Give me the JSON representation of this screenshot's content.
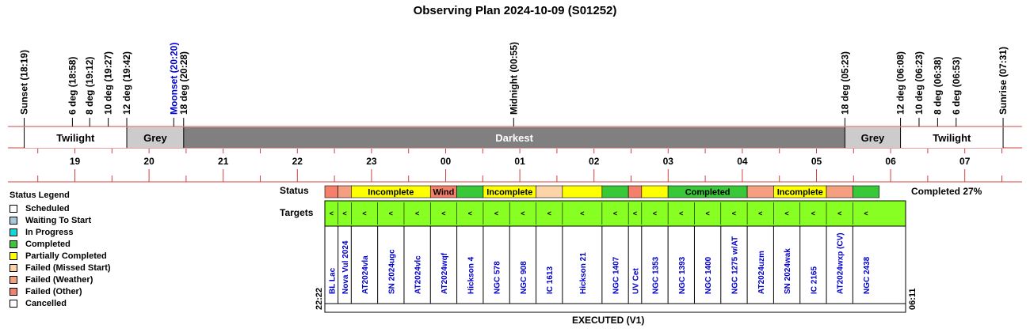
{
  "title": "Observing Plan 2024-10-09 (S01252)",
  "colors": {
    "scheduled": "#ffffff",
    "waiting": "#a6cadc",
    "in_progress": "#14d8d8",
    "completed": "#38c838",
    "partial": "#ffff00",
    "missed_start": "#fcd4a8",
    "weather": "#f4a080",
    "other": "#f4806c",
    "cancelled": "#ffffff",
    "twilight": "#ffffff",
    "grey": "#cccccc",
    "darkest": "#808080",
    "target_green": "#88ff22",
    "rule_red": "#d04040",
    "target_blue": "#0000cc"
  },
  "timeline": {
    "start_hour": 18.25,
    "end_hour": 31.6,
    "events": [
      {
        "label": "Sunset (18:19)",
        "hour": 18.3167,
        "color": "#000000"
      },
      {
        "label": "6 deg (18:58)",
        "hour": 18.9667,
        "color": "#000000"
      },
      {
        "label": "8 deg (19:12)",
        "hour": 19.2,
        "color": "#000000"
      },
      {
        "label": "10 deg (19:27)",
        "hour": 19.45,
        "color": "#000000"
      },
      {
        "label": "12 deg (19:42)",
        "hour": 19.7,
        "color": "#000000"
      },
      {
        "label": "Moonset (20:20)",
        "hour": 20.3333,
        "color": "#0000cc"
      },
      {
        "label": "18 deg (20:28)",
        "hour": 20.4667,
        "color": "#000000"
      },
      {
        "label": "Midnight (00:55)",
        "hour": 24.9167,
        "color": "#000000"
      },
      {
        "label": "18 deg (05:23)",
        "hour": 29.3833,
        "color": "#000000"
      },
      {
        "label": "12 deg (06:08)",
        "hour": 30.1333,
        "color": "#000000"
      },
      {
        "label": "10 deg (06:23)",
        "hour": 30.3833,
        "color": "#000000"
      },
      {
        "label": "8 deg (06:38)",
        "hour": 30.6333,
        "color": "#000000"
      },
      {
        "label": "6 deg (06:53)",
        "hour": 30.8833,
        "color": "#000000"
      },
      {
        "label": "Sunrise (07:31)",
        "hour": 31.5167,
        "color": "#000000"
      }
    ],
    "bands": [
      {
        "label": "Twilight",
        "from": 18.3167,
        "to": 19.7,
        "kind": "twilight"
      },
      {
        "label": "Grey",
        "from": 19.7,
        "to": 20.4667,
        "kind": "grey"
      },
      {
        "label": "Darkest",
        "from": 20.4667,
        "to": 29.3833,
        "kind": "darkest"
      },
      {
        "label": "Grey",
        "from": 29.3833,
        "to": 30.1333,
        "kind": "grey"
      },
      {
        "label": "Twilight",
        "from": 30.1333,
        "to": 31.5167,
        "kind": "twilight"
      }
    ],
    "hours": [
      "19",
      "20",
      "21",
      "22",
      "23",
      "00",
      "01",
      "02",
      "03",
      "04",
      "05",
      "06",
      "07"
    ]
  },
  "legend": {
    "title": "Status Legend",
    "items": [
      {
        "label": "Scheduled",
        "color": "#ffffff"
      },
      {
        "label": "Waiting To Start",
        "color": "#a6cadc"
      },
      {
        "label": "In Progress",
        "color": "#14d8d8"
      },
      {
        "label": "Completed",
        "color": "#38c838"
      },
      {
        "label": "Partially Completed",
        "color": "#ffff00"
      },
      {
        "label": "Failed (Missed Start)",
        "color": "#fcd4a8"
      },
      {
        "label": "Failed (Weather)",
        "color": "#f4a080"
      },
      {
        "label": "Failed (Other)",
        "color": "#f4806c"
      },
      {
        "label": "Cancelled",
        "color": "#ffffff"
      }
    ]
  },
  "labels": {
    "status": "Status",
    "targets": "Targets",
    "completed_pct": "Completed 27%",
    "start_time": "22:22",
    "end_time": "06:11",
    "footer": "EXECUTED (V1)"
  },
  "chart_data": {
    "type": "table",
    "title": "Observing Plan 2024-10-09 (S01252)",
    "targets": [
      "BL Lac",
      "Nova Vul 2024",
      "AT2024vla",
      "SN 2024ugc",
      "AT2024vlc",
      "AT2024wqf",
      "Hickson 4",
      "NGC 578",
      "NGC 908",
      "IC 1613",
      "Hickson 21",
      "NGC 1407",
      "UV Cet",
      "NGC 1353",
      "NGC 1393",
      "NGC 1400",
      "NGC 1275 w/AT",
      "AT2024uzm",
      "SN 2024wak",
      "IC 2165",
      "AT2024wxp (CV)",
      "NGC 2438"
    ],
    "target_widths": [
      1,
      1,
      2,
      2,
      2,
      2,
      2,
      2,
      2,
      2,
      3,
      2,
      1,
      2,
      2,
      2,
      2,
      2,
      2,
      2,
      2,
      2
    ],
    "status_blocks": [
      {
        "width": 1,
        "status": "other",
        "text": ""
      },
      {
        "width": 1,
        "status": "weather",
        "text": ""
      },
      {
        "width": 6,
        "status": "partial",
        "text": "Incomplete"
      },
      {
        "width": 2,
        "status": "other",
        "text": "Wind"
      },
      {
        "width": 2,
        "status": "completed",
        "text": ""
      },
      {
        "width": 4,
        "status": "partial",
        "text": "Incomplete"
      },
      {
        "width": 2,
        "status": "missed_start",
        "text": ""
      },
      {
        "width": 3,
        "status": "partial",
        "text": ""
      },
      {
        "width": 2,
        "status": "completed",
        "text": ""
      },
      {
        "width": 1,
        "status": "other",
        "text": ""
      },
      {
        "width": 2,
        "status": "partial",
        "text": ""
      },
      {
        "width": 6,
        "status": "completed",
        "text": "Completed"
      },
      {
        "width": 2,
        "status": "weather",
        "text": ""
      },
      {
        "width": 4,
        "status": "partial",
        "text": "Incomplete"
      },
      {
        "width": 2,
        "status": "weather",
        "text": ""
      },
      {
        "width": 2,
        "status": "completed",
        "text": ""
      }
    ],
    "target_marker": "<"
  }
}
